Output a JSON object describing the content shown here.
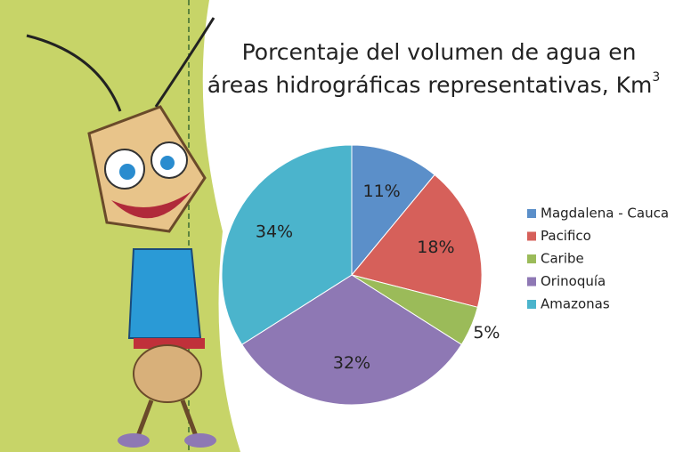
{
  "chart_data": {
    "type": "pie",
    "title": [
      "Porcentaje del volumen de agua en",
      "áreas hidrográficas representativas, Km"
    ],
    "title_superscript": "3",
    "categories": [
      "Magdalena - Cauca",
      "Pacifico",
      "Caribe",
      "Orinoquía",
      "Amazonas"
    ],
    "values": [
      11,
      18,
      5,
      32,
      34
    ],
    "value_labels": [
      "11%",
      "18%",
      "5%",
      "32%",
      "34%"
    ],
    "colors": [
      "#5b8fc9",
      "#d6605a",
      "#9bbb59",
      "#8e78b4",
      "#4bb4cc"
    ],
    "legend": "right"
  }
}
